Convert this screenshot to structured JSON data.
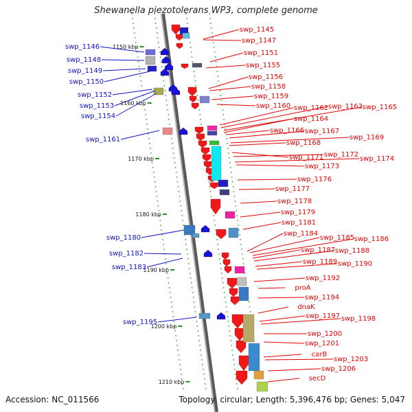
{
  "title": "Shewanella piezotolerans WP3, complete genome",
  "footer": {
    "accession": "Accession: NC_011566",
    "topology": "Topology: circular; Length: 5,396,476 bp; Genes: 5,047"
  },
  "colors": {
    "left_label": "#1010c8",
    "right_label": "#e00000",
    "backbone": "#8a8a8a"
  },
  "scale_marks": [
    "1150 kbp",
    "1160 kbp",
    "1170 kbp",
    "1180 kbp",
    "1190 kbp",
    "1200 kbp",
    "1210 kbp"
  ],
  "left_labels": [
    "swp_1146",
    "swp_1148",
    "swp_1149",
    "swp_1150",
    "swp_1152",
    "swp_1153",
    "swp_1154",
    "swp_1161",
    "swp_1180",
    "swp_1182",
    "swp_1183",
    "swp_1195"
  ],
  "right_labels": [
    "swp_1145",
    "swp_1147",
    "swp_1151",
    "swp_1155",
    "swp_1156",
    "swp_1158",
    "swp_1159",
    "swp_1160",
    "swp_1162",
    "swp_1163",
    "swp_1165",
    "swp_1164",
    "swp_1166",
    "swp_1167",
    "swp_1169",
    "swp_1168",
    "swp_1171",
    "swp_1172",
    "swp_1174",
    "swp_1173",
    "swp_1176",
    "swp_1177",
    "swp_1178",
    "swp_1179",
    "swp_1181",
    "swp_1184",
    "swp_1185",
    "swp_1186",
    "swp_1187",
    "swp_1188",
    "swp_1189",
    "swp_1190",
    "swp_1192",
    "proA",
    "swp_1194",
    "dnaK",
    "swp_1197",
    "swp_1198",
    "swp_1200",
    "swp_1201",
    "carB",
    "swp_1203",
    "swp_1206",
    "secD"
  ]
}
